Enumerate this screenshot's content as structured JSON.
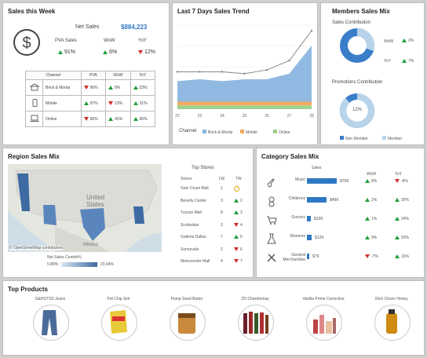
{
  "colors": {
    "accent": "#2f78c4",
    "up": "#1f9d3a",
    "down": "#d22b2b",
    "nonmember": "#3a7dc9",
    "member": "#b8d4ea"
  },
  "sales_week": {
    "title": "Sales this Week",
    "net_sales_label": "Net Sales",
    "net_sales_value": "$884,223",
    "pva_label": "PVA Sales",
    "pva_value": "91%",
    "pva_dir": "up",
    "wow_label": "WoW",
    "wow_value": "6%",
    "wow_dir": "up",
    "yoy_label": "YoY",
    "yoy_value": "12%",
    "yoy_dir": "down",
    "table_headers": [
      "Channel",
      "PVA",
      "WoW",
      "YoY"
    ],
    "rows": [
      {
        "channel": "Brick & Mortar",
        "icon": "store-icon",
        "pva": "96%",
        "pva_dir": "down",
        "wow": "8%",
        "wow_dir": "up",
        "yoy": "23%",
        "yoy_dir": "up"
      },
      {
        "channel": "Mobile",
        "icon": "mobile-icon",
        "pva": "97%",
        "pva_dir": "up",
        "wow": "13%",
        "wow_dir": "down",
        "yoy": "31%",
        "yoy_dir": "up"
      },
      {
        "channel": "Online",
        "icon": "laptop-icon",
        "pva": "96%",
        "pva_dir": "down",
        "wow": "41%",
        "wow_dir": "up",
        "yoy": "36%",
        "yoy_dir": "up"
      }
    ]
  },
  "trend": {
    "title": "Last 7 Days Sales Trend",
    "legend_title": "Channel",
    "legend": [
      {
        "name": "Brick & Mortar",
        "color": "#8ab6e0"
      },
      {
        "name": "Mobile",
        "color": "#f2a65a"
      },
      {
        "name": "Online",
        "color": "#9bd08a"
      }
    ]
  },
  "chart_data": {
    "type": "area",
    "x": [
      "22",
      "23",
      "24",
      "25",
      "26",
      "27",
      "28"
    ],
    "series": [
      {
        "name": "Brick & Mortar",
        "values": [
          11,
          12,
          11,
          12,
          12,
          15,
          30
        ]
      },
      {
        "name": "Mobile",
        "values": [
          2,
          2,
          2,
          2,
          2,
          2,
          2
        ]
      },
      {
        "name": "Online",
        "values": [
          2,
          2,
          2,
          2,
          2,
          2,
          2
        ]
      }
    ],
    "total_line": [
      20,
      20,
      20,
      19,
      21,
      26,
      42
    ]
  },
  "members": {
    "title": "Members Sales Mix",
    "sales_contribution_label": "Sales Contribution",
    "wow_label": "WoW",
    "wow_value": "2%",
    "wow_dir": "up",
    "yoy_label": "YoY",
    "yoy_value": "7%",
    "yoy_dir": "up",
    "promotions_label": "Promotions Contribution",
    "promo_center": "12%",
    "sales_member_share": 0.3,
    "promo_member_share": 0.88,
    "legend": [
      "Non Member",
      "Member"
    ]
  },
  "region": {
    "title": "Region Sales Mix",
    "map_labels": {
      "us": "United States",
      "mexico": "Mexico",
      "attribution": "© OpenStreetMap contributors"
    },
    "scale_label": "Net Sales Contrib%",
    "scale_min": "5.88%",
    "scale_max": "20.94%",
    "stores_title": "Top Stores",
    "stores_headers": [
      "Stores",
      "LW",
      "TW"
    ],
    "stores": [
      {
        "name": "Gain Coast Mall",
        "lw": "1",
        "tw": "",
        "dir": "same"
      },
      {
        "name": "Beverly Center",
        "lw": "3",
        "tw": "2",
        "dir": "up"
      },
      {
        "name": "Tucson Mall",
        "lw": "8",
        "tw": "3",
        "dir": "up"
      },
      {
        "name": "Scottsdale",
        "lw": "3",
        "tw": "4",
        "dir": "down"
      },
      {
        "name": "Galleria Dallas",
        "lw": "7",
        "tw": "5",
        "dir": "up"
      },
      {
        "name": "Sunnyvale",
        "lw": "2",
        "tw": "6",
        "dir": "down"
      },
      {
        "name": "Metrocenter Mall",
        "lw": "4",
        "tw": "7",
        "dir": "down"
      }
    ]
  },
  "category": {
    "title": "Category Sales Mix",
    "sales_label": "Sales",
    "wow_label": "WoW",
    "yoy_label": "YoY",
    "items": [
      {
        "name": "Music",
        "icon": "guitar-icon",
        "value": "$75K",
        "share": 1.0,
        "wow": "8%",
        "wow_dir": "up",
        "yoy": "-8%",
        "yoy_dir": "down"
      },
      {
        "name": "Childrens",
        "icon": "teddy-icon",
        "value": "$49K",
        "share": 0.65,
        "wow": "2%",
        "wow_dir": "up",
        "yoy": "30%",
        "yoy_dir": "up"
      },
      {
        "name": "Grocery",
        "icon": "cart-icon",
        "value": "$10K",
        "share": 0.14,
        "wow": "1%",
        "wow_dir": "up",
        "yoy": "24%",
        "yoy_dir": "up"
      },
      {
        "name": "Womens",
        "icon": "dress-icon",
        "value": "$12K",
        "share": 0.16,
        "wow": "9%",
        "wow_dir": "up",
        "yoy": "50%",
        "yoy_dir": "up"
      },
      {
        "name": "General Merchandise",
        "icon": "tools-icon",
        "value": "$7K",
        "share": 0.09,
        "wow": "-7%",
        "wow_dir": "down",
        "yoy": "16%",
        "yoy_dir": "up"
      }
    ]
  },
  "products": {
    "title": "Top Products",
    "items": [
      {
        "name": "G&HOTS3 Jeans",
        "icon": "jeans-icon"
      },
      {
        "name": "Pet Chip Snk",
        "icon": "chips-icon"
      },
      {
        "name": "Pump Seed Butter",
        "icon": "jar-icon"
      },
      {
        "name": "ZD Chardonnay",
        "icon": "wine-icon"
      },
      {
        "name": "Vanilla Prime Corrective",
        "icon": "cosmetics-icon"
      },
      {
        "name": "Rich Clover Honey",
        "icon": "honey-icon"
      }
    ]
  }
}
